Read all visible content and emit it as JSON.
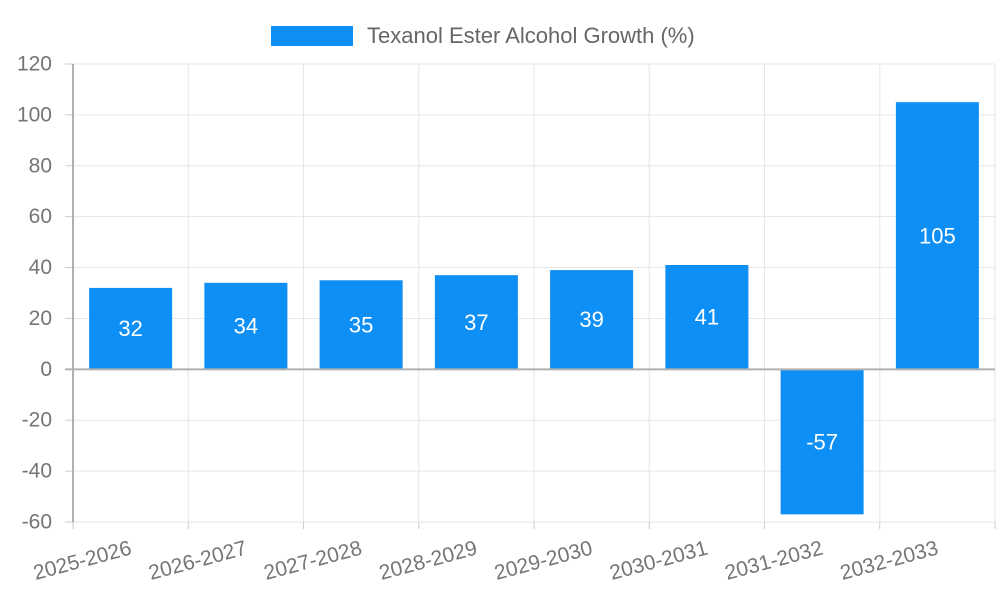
{
  "legend": {
    "label": "Texanol Ester Alcohol Growth (%)"
  },
  "chart_data": {
    "type": "bar",
    "title": "Texanol Ester Alcohol Growth (%)",
    "categories": [
      "2025-2026",
      "2026-2027",
      "2027-2028",
      "2028-2029",
      "2029-2030",
      "2030-2031",
      "2031-2032",
      "2032-2033"
    ],
    "values": [
      32,
      34,
      35,
      37,
      39,
      41,
      -57,
      105
    ],
    "series_name": "Texanol Ester Alcohol Growth (%)",
    "xlabel": "",
    "ylabel": "",
    "ylim": [
      -60,
      120
    ],
    "yticks": [
      -60,
      -40,
      -20,
      0,
      20,
      40,
      60,
      80,
      100,
      120
    ],
    "grid": true,
    "legend_position": "top-center",
    "bar_color": "#0d8ff5",
    "bar_label_color": "#ffffff",
    "axis_text_color": "#757575",
    "grid_color": "#e6e6e6",
    "axis_line_color": "#b0b0b0",
    "tick_color": "#cccccc",
    "legend_text_color": "#666666",
    "background_color": "#ffffff"
  }
}
